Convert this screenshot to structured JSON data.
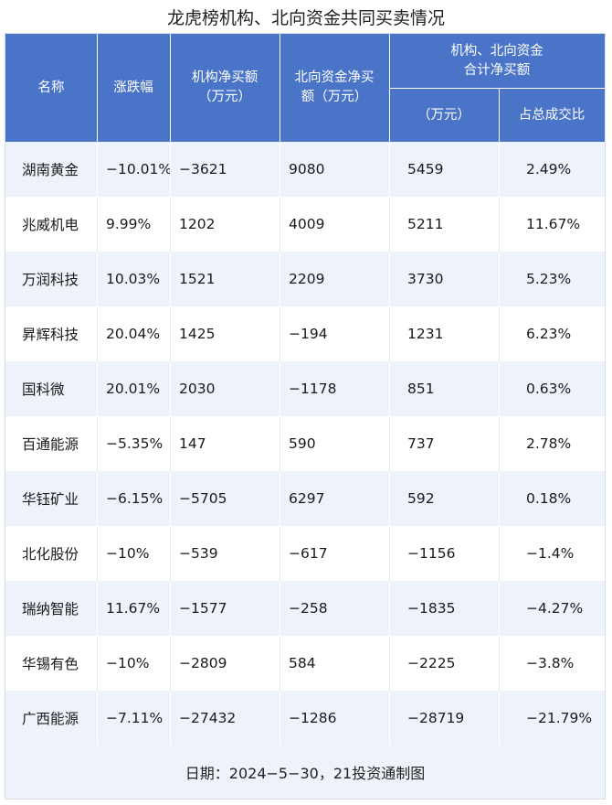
{
  "chart_data": {
    "type": "table",
    "title": "龙虎榜机构、北向资金共同买卖情况",
    "columns": {
      "name": "名称",
      "change": "涨跌幅",
      "inst_line1": "机构净买额",
      "inst_line2": "（万元）",
      "north_line1": "北向资金净买",
      "north_line2": "额（万元）",
      "group_line1": "机构、北向资金",
      "group_line2": "合计净买额",
      "combined": "（万元）",
      "ratio": "占总成交比"
    },
    "rows": [
      {
        "name": "湖南黄金",
        "change": "−10.01%",
        "inst": "−3621",
        "north": "9080",
        "combined": "5459",
        "ratio": "2.49%"
      },
      {
        "name": "兆威机电",
        "change": "9.99%",
        "inst": "1202",
        "north": "4009",
        "combined": "5211",
        "ratio": "11.67%"
      },
      {
        "name": "万润科技",
        "change": "10.03%",
        "inst": "1521",
        "north": "2209",
        "combined": "3730",
        "ratio": "5.23%"
      },
      {
        "name": "昇辉科技",
        "change": "20.04%",
        "inst": "1425",
        "north": "−194",
        "combined": "1231",
        "ratio": "6.23%"
      },
      {
        "name": "国科微",
        "change": "20.01%",
        "inst": "2030",
        "north": "−1178",
        "combined": "851",
        "ratio": "0.63%"
      },
      {
        "name": "百通能源",
        "change": "−5.35%",
        "inst": "147",
        "north": "590",
        "combined": "737",
        "ratio": "2.78%"
      },
      {
        "name": "华钰矿业",
        "change": "−6.15%",
        "inst": "−5705",
        "north": "6297",
        "combined": "592",
        "ratio": "0.18%"
      },
      {
        "name": "北化股份",
        "change": "−10%",
        "inst": "−539",
        "north": "−617",
        "combined": "−1156",
        "ratio": "−1.4%"
      },
      {
        "name": "瑞纳智能",
        "change": "11.67%",
        "inst": "−1577",
        "north": "−258",
        "combined": "−1835",
        "ratio": "−4.27%"
      },
      {
        "name": "华锡有色",
        "change": "−10%",
        "inst": "−2809",
        "north": "584",
        "combined": "−2225",
        "ratio": "−3.8%"
      },
      {
        "name": "广西能源",
        "change": "−7.11%",
        "inst": "−27432",
        "north": "−1286",
        "combined": "−28719",
        "ratio": "−21.79%"
      }
    ],
    "footer": "日期：2024−5−30，21投资通制图"
  },
  "colors": {
    "header_bg": "#4a74c7",
    "row_alt_bg": "#eef3fb",
    "row_bg": "#ffffff"
  }
}
